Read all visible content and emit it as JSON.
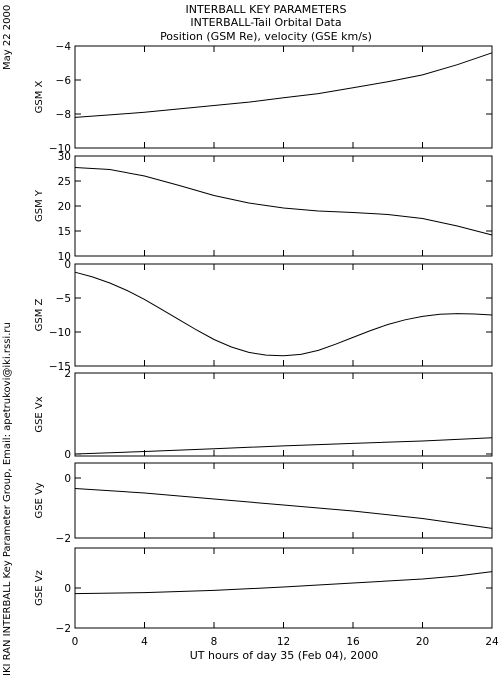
{
  "side_left": "IKI RAN INTERBALL Key Parameter Group, Email: apetrukovi@iki.rssi.ru",
  "side_date": "May 22 2000",
  "title_lines": [
    "INTERBALL KEY PARAMETERS",
    "INTERBALL-Tail Orbital Data",
    "Position (GSM Re), velocity (GSE km/s)"
  ],
  "xlabel": "UT hours of day  35 (Feb 04), 2000",
  "chart_data": [
    {
      "type": "line",
      "ylabel": "GSM X",
      "ylim": [
        -10,
        -4
      ],
      "yticks": [
        -10,
        -8,
        -6,
        -4
      ],
      "xlim": [
        0,
        24
      ],
      "x": [
        0,
        2,
        4,
        6,
        8,
        10,
        12,
        14,
        16,
        18,
        20,
        22,
        24
      ],
      "series": [
        {
          "values": [
            -8.2,
            -8.05,
            -7.9,
            -7.7,
            -7.5,
            -7.3,
            -7.05,
            -6.8,
            -6.45,
            -6.1,
            -5.7,
            -5.1,
            -4.4
          ]
        }
      ]
    },
    {
      "type": "line",
      "ylabel": "GSM Y",
      "ylim": [
        10,
        30
      ],
      "yticks": [
        10,
        15,
        20,
        25,
        30
      ],
      "xlim": [
        0,
        24
      ],
      "x": [
        0,
        2,
        4,
        6,
        8,
        10,
        12,
        14,
        16,
        18,
        20,
        22,
        24
      ],
      "series": [
        {
          "values": [
            27.7,
            27.3,
            26.0,
            24.1,
            22.1,
            20.6,
            19.6,
            19.0,
            18.7,
            18.3,
            17.5,
            16.0,
            14.2
          ]
        }
      ]
    },
    {
      "type": "line",
      "ylabel": "GSM Z",
      "ylim": [
        -15,
        0
      ],
      "yticks": [
        -15,
        -10,
        -5,
        0
      ],
      "xlim": [
        0,
        24
      ],
      "x": [
        0,
        1,
        2,
        3,
        4,
        5,
        6,
        7,
        8,
        9,
        10,
        11,
        12,
        13,
        14,
        15,
        16,
        17,
        18,
        19,
        20,
        21,
        22,
        23,
        24
      ],
      "series": [
        {
          "values": [
            -1.2,
            -1.9,
            -2.8,
            -3.9,
            -5.2,
            -6.7,
            -8.2,
            -9.7,
            -11.1,
            -12.2,
            -13.0,
            -13.4,
            -13.5,
            -13.3,
            -12.7,
            -11.8,
            -10.8,
            -9.8,
            -8.9,
            -8.2,
            -7.7,
            -7.4,
            -7.3,
            -7.35,
            -7.5
          ]
        }
      ]
    },
    {
      "type": "line",
      "ylabel": "GSE Vx",
      "ylim": [
        -0.05,
        2
      ],
      "yticks": [
        0,
        2
      ],
      "xlim": [
        0,
        24
      ],
      "x": [
        0,
        4,
        8,
        12,
        16,
        20,
        24
      ],
      "series": [
        {
          "values": [
            0.0,
            0.06,
            0.13,
            0.2,
            0.26,
            0.32,
            0.4
          ]
        }
      ]
    },
    {
      "type": "line",
      "ylabel": "GSE Vy",
      "ylim": [
        -2,
        0.5
      ],
      "yticks": [
        -2,
        0
      ],
      "xlim": [
        0,
        24
      ],
      "x": [
        0,
        4,
        8,
        12,
        16,
        20,
        24
      ],
      "series": [
        {
          "values": [
            -0.35,
            -0.5,
            -0.7,
            -0.9,
            -1.1,
            -1.35,
            -1.68
          ]
        }
      ]
    },
    {
      "type": "line",
      "ylabel": "GSE Vz",
      "ylim": [
        -2,
        2
      ],
      "yticks": [
        -2,
        0
      ],
      "xlim": [
        0,
        24
      ],
      "x": [
        0,
        4,
        8,
        12,
        16,
        20,
        22,
        24
      ],
      "series": [
        {
          "values": [
            -0.28,
            -0.23,
            -0.12,
            0.05,
            0.25,
            0.45,
            0.6,
            0.82
          ]
        }
      ]
    }
  ],
  "xticks": [
    0,
    4,
    8,
    12,
    16,
    20,
    24
  ]
}
